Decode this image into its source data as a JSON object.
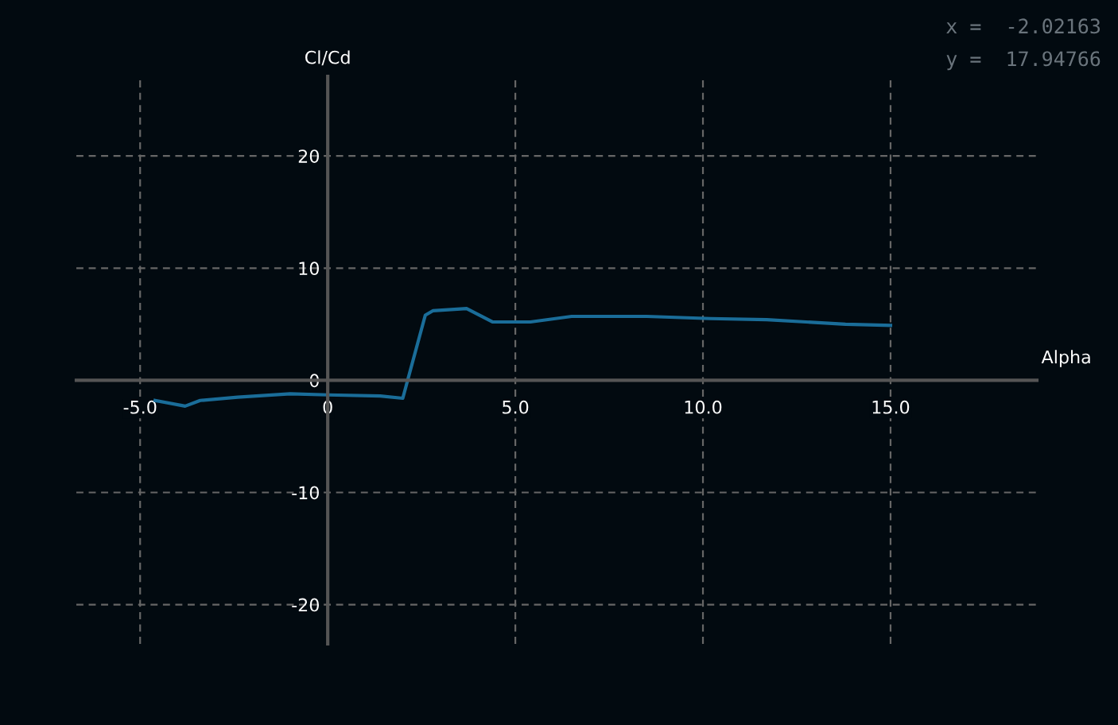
{
  "chart_data": {
    "type": "line",
    "xlabel": "Alpha",
    "ylabel": "Cl/Cd",
    "x": [
      -4.6,
      -3.8,
      -3.4,
      -2.4,
      -1.0,
      0.0,
      1.4,
      2.0,
      2.6,
      2.8,
      3.7,
      4.4,
      5.4,
      6.5,
      8.5,
      10.2,
      11.7,
      13.8,
      15.0
    ],
    "series": [
      {
        "color": "#1a6d99",
        "values": [
          -1.8,
          -2.3,
          -1.8,
          -1.5,
          -1.2,
          -1.3,
          -1.4,
          -1.6,
          5.8,
          6.2,
          6.4,
          5.2,
          5.2,
          5.7,
          5.7,
          5.5,
          5.4,
          5.0,
          4.9
        ]
      }
    ],
    "xlim": [
      -6.7,
      18.9
    ],
    "ylim": [
      -23.5,
      27.1
    ],
    "xticks": [
      {
        "value": -5,
        "label": "-5.0"
      },
      0,
      {
        "value": 5,
        "label": "5.0"
      },
      {
        "value": 10,
        "label": "10.0"
      },
      {
        "value": 15,
        "label": "15.0"
      }
    ],
    "yticks": [
      -20,
      -10,
      0,
      10,
      20
    ],
    "grid": true,
    "marker": "none",
    "line_style": "solid",
    "annotations": [
      "x =  -2.02163",
      "y =  17.94766"
    ]
  }
}
